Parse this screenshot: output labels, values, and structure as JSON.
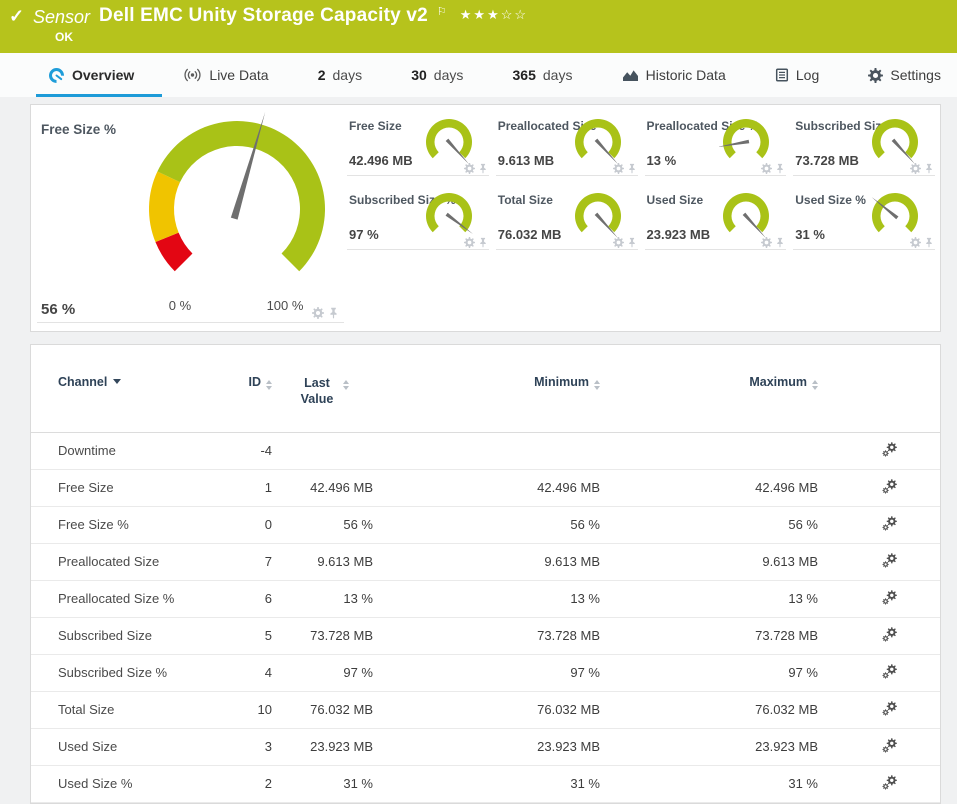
{
  "header": {
    "kind": "Sensor",
    "title": "Dell EMC Unity Storage Capacity v2",
    "status": "OK",
    "rating": "★★★☆☆"
  },
  "tabs": [
    {
      "label": "Overview",
      "active": true
    },
    {
      "label": "Live Data"
    },
    {
      "num": "2",
      "unit": "days"
    },
    {
      "num": "30",
      "unit": "days"
    },
    {
      "num": "365",
      "unit": "days"
    },
    {
      "label": "Historic Data"
    },
    {
      "label": "Log"
    },
    {
      "label": "Settings"
    }
  ],
  "gauges": {
    "start_deg": 225,
    "sweep_deg": 270,
    "ring_color": "#a9c217",
    "needle_color": "#6f6f6f",
    "main": {
      "title": "Free Size %",
      "value": "56 %",
      "min_label": "0 %",
      "max_label": "100 %",
      "needle_deg": 73.8,
      "segments": [
        {
          "from": 0,
          "to": 0.085,
          "color": "#e30613"
        },
        {
          "from": 0.085,
          "to": 0.26,
          "color": "#f0c400"
        },
        {
          "from": 0.26,
          "to": 1,
          "color": "#a9c217"
        }
      ]
    },
    "minis": [
      {
        "label": "Free Size",
        "value": "42.496 MB",
        "needle_deg": -48
      },
      {
        "label": "Preallocated Size",
        "value": "9.613 MB",
        "needle_deg": -48
      },
      {
        "label": "Preallocated Size %",
        "value": "13 %",
        "needle_deg": 190
      },
      {
        "label": "Subscribed Size",
        "value": "73.728 MB",
        "needle_deg": -48
      },
      {
        "label": "Subscribed Size %",
        "value": "97 %",
        "needle_deg": -37
      },
      {
        "label": "Total Size",
        "value": "76.032 MB",
        "needle_deg": -48
      },
      {
        "label": "Used Size",
        "value": "23.923 MB",
        "needle_deg": -48
      },
      {
        "label": "Used Size %",
        "value": "31 %",
        "needle_deg": 141
      }
    ]
  },
  "table": {
    "columns": [
      "Channel",
      "ID",
      "Last Value",
      "Minimum",
      "Maximum"
    ],
    "rows": [
      {
        "channel": "Downtime",
        "id": "-4",
        "last": "",
        "min": "",
        "max": ""
      },
      {
        "channel": "Free Size",
        "id": "1",
        "last": "42.496 MB",
        "min": "42.496 MB",
        "max": "42.496 MB"
      },
      {
        "channel": "Free Size %",
        "id": "0",
        "last": "56 %",
        "min": "56 %",
        "max": "56 %"
      },
      {
        "channel": "Preallocated Size",
        "id": "7",
        "last": "9.613 MB",
        "min": "9.613 MB",
        "max": "9.613 MB"
      },
      {
        "channel": "Preallocated Size %",
        "id": "6",
        "last": "13 %",
        "min": "13 %",
        "max": "13 %"
      },
      {
        "channel": "Subscribed Size",
        "id": "5",
        "last": "73.728 MB",
        "min": "73.728 MB",
        "max": "73.728 MB"
      },
      {
        "channel": "Subscribed Size %",
        "id": "4",
        "last": "97 %",
        "min": "97 %",
        "max": "97 %"
      },
      {
        "channel": "Total Size",
        "id": "10",
        "last": "76.032 MB",
        "min": "76.032 MB",
        "max": "76.032 MB"
      },
      {
        "channel": "Used Size",
        "id": "3",
        "last": "23.923 MB",
        "min": "23.923 MB",
        "max": "23.923 MB"
      },
      {
        "channel": "Used Size %",
        "id": "2",
        "last": "31 %",
        "min": "31 %",
        "max": "31 %"
      }
    ]
  },
  "colors": {
    "topbar": "#b6c31c",
    "accent": "#1d9bd8",
    "gauge_green": "#a9c217",
    "gauge_yellow": "#f0c400",
    "gauge_red": "#e30613",
    "needle": "#6f6f6f"
  }
}
